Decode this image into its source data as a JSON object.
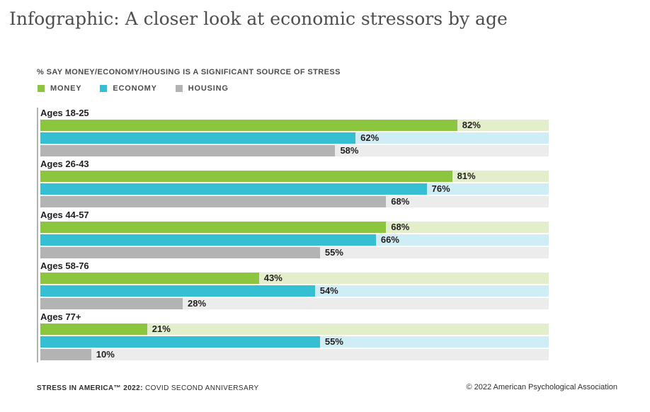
{
  "page": {
    "title": "Infographic: A closer look at economic stressors by age",
    "subtitle": "% SAY MONEY/ECONOMY/HOUSING IS A SIGNIFICANT SOURCE OF STRESS",
    "footer_left_bold": "STRESS IN AMERICA™ 2022:",
    "footer_left_regular": "COVID SECOND ANNIVERSARY",
    "footer_right": "© 2022 American Psychological Association"
  },
  "colors": {
    "money": "#8CC63F",
    "money_track": "#E2EFCA",
    "economy": "#34BFD3",
    "economy_track": "#CFEDF5",
    "housing": "#B3B3B3",
    "housing_track": "#ECECEC",
    "axis": "#B3B3B3",
    "label_text": "#221E1F"
  },
  "legend": [
    {
      "label": "MONEY",
      "color": "#8CC63F"
    },
    {
      "label": "ECONOMY",
      "color": "#34BFD3"
    },
    {
      "label": "HOUSING",
      "color": "#B3B3B3"
    }
  ],
  "chart_data": {
    "type": "bar",
    "orientation": "horizontal",
    "title": "% SAY MONEY/ECONOMY/HOUSING IS A SIGNIFICANT SOURCE OF STRESS",
    "categories": [
      "Ages 18-25",
      "Ages 26-43",
      "Ages 44-57",
      "Ages 58-76",
      "Ages 77+"
    ],
    "series": [
      {
        "name": "MONEY",
        "color": "#8CC63F",
        "track_color": "#E2EFCA",
        "values": [
          82,
          81,
          68,
          43,
          21
        ]
      },
      {
        "name": "ECONOMY",
        "color": "#34BFD3",
        "track_color": "#CFEDF5",
        "values": [
          62,
          76,
          66,
          54,
          55
        ]
      },
      {
        "name": "HOUSING",
        "color": "#B3B3B3",
        "track_color": "#ECECEC",
        "values": [
          58,
          68,
          55,
          28,
          10
        ]
      }
    ],
    "value_suffix": "%",
    "xlim": [
      0,
      100
    ],
    "grid": false,
    "legend_position": "top-left"
  }
}
